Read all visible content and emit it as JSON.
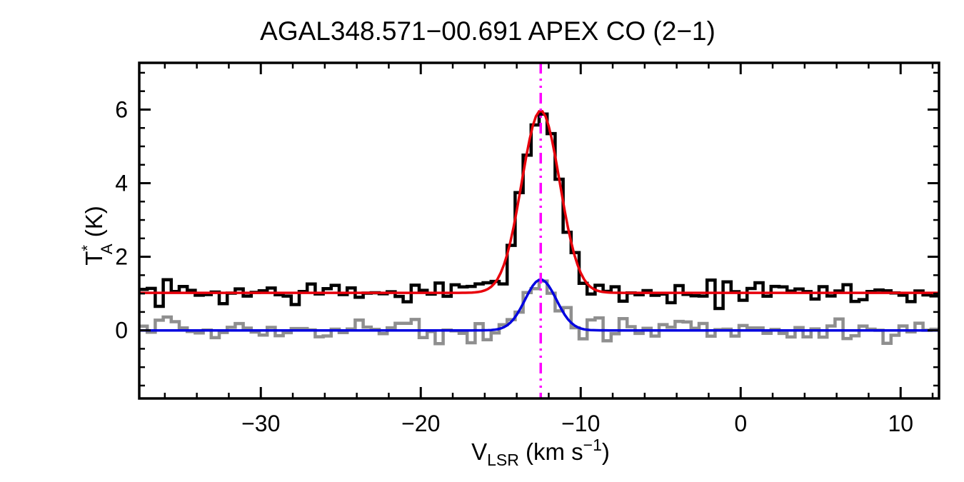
{
  "title": "AGAL348.571−00.691  APEX CO (2−1)",
  "chart_data": {
    "type": "line",
    "title": "AGAL348.571−00.691  APEX CO (2−1)",
    "xlabel": "V_LSR (km s−1)",
    "ylabel": "T_A* (K)",
    "xlabel_parts": {
      "symbol": "V",
      "subscript": "LSR",
      "unit_pre": " (km s",
      "unit_sup": "−1",
      "unit_post": ")"
    },
    "ylabel_parts": {
      "symbol": "T",
      "superscript": "*",
      "subscript": "A",
      "unit": " (K)"
    },
    "xlim": [
      -37.6,
      12.4
    ],
    "ylim": [
      -1.85,
      7.27
    ],
    "xticks": [
      -30,
      -20,
      -10,
      0,
      10
    ],
    "yticks": [
      0,
      2,
      4,
      6
    ],
    "x_minor_step": 2,
    "y_minor_step": 0.5,
    "channel_width_kms": 0.5,
    "noise_seed": 7,
    "grid": false,
    "legend": false,
    "series": [
      {
        "name": "co21-spectrum",
        "style": "histogram",
        "color": "#000000",
        "baseline": 1.02,
        "amplitude": 4.95,
        "center": -12.5,
        "fwhm": 2.8,
        "noise_rms": 0.18,
        "line_width": 4.5
      },
      {
        "name": "gaussian-fit-main",
        "style": "smooth",
        "color": "#e8000b",
        "baseline": 1.02,
        "amplitude": 4.95,
        "center": -12.5,
        "fwhm": 2.8,
        "noise_rms": 0,
        "line_width": 3.5
      },
      {
        "name": "residual-spectrum",
        "style": "histogram",
        "color": "#8f8f8f",
        "baseline": 0.0,
        "amplitude": 1.38,
        "center": -12.5,
        "fwhm": 2.3,
        "noise_rms": 0.16,
        "line_width": 4.5
      },
      {
        "name": "gaussian-fit-residual",
        "style": "smooth",
        "color": "#0000e0",
        "baseline": 0.0,
        "amplitude": 1.38,
        "center": -12.5,
        "fwhm": 2.3,
        "noise_rms": 0,
        "line_width": 3.5
      }
    ],
    "vline": {
      "x": -12.5,
      "color": "#ff00ff",
      "style": "dash-dot-dot",
      "line_width": 3.5
    }
  }
}
